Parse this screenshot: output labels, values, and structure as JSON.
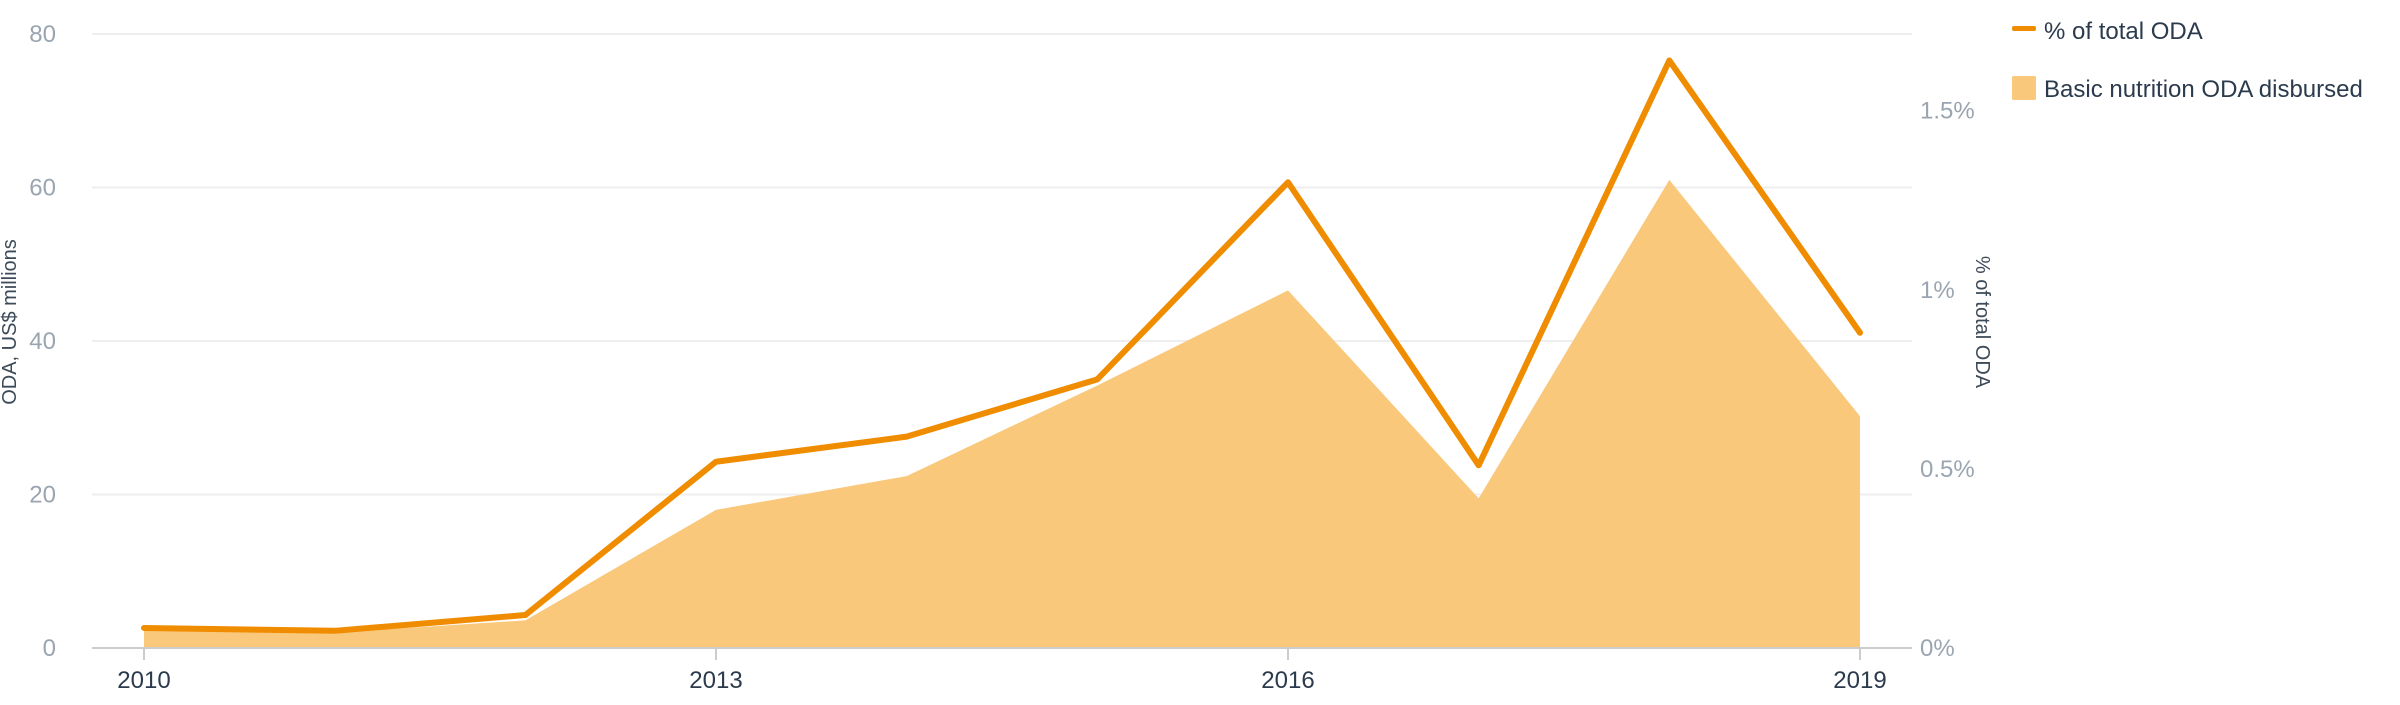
{
  "chart_data": {
    "type": "area",
    "x": [
      2010,
      2011,
      2012,
      2013,
      2014,
      2015,
      2016,
      2017,
      2018,
      2019
    ],
    "x_tick_labels": [
      "2010",
      "2013",
      "2016",
      "2019"
    ],
    "series": [
      {
        "name": "Basic nutrition ODA disbursed",
        "type": "area",
        "axis": "left",
        "color": "#fac87a",
        "values": [
          2.4,
          2.0,
          3.6,
          18.0,
          22.4,
          34.2,
          46.6,
          19.5,
          61.0,
          30.2
        ]
      },
      {
        "name": "% of total ODA",
        "type": "line",
        "axis": "right",
        "color": "#f08c00",
        "values": [
          0.056,
          0.048,
          0.092,
          0.52,
          0.59,
          0.75,
          1.3,
          0.51,
          1.64,
          0.88
        ]
      }
    ],
    "y_left": {
      "label": "ODA, US$ millions",
      "range": [
        0,
        80
      ],
      "ticks": [
        0,
        20,
        40,
        60,
        80
      ],
      "tick_labels": [
        "0",
        "20",
        "40",
        "60",
        "80"
      ]
    },
    "y_right": {
      "label": "% of total ODA",
      "range": [
        0,
        1.714
      ],
      "ticks": [
        0,
        0.5,
        1,
        1.5
      ],
      "tick_labels": [
        "0%",
        "0.5%",
        "1%",
        "1.5%"
      ]
    },
    "grid": true,
    "legend": {
      "placement": "top-right",
      "entries": [
        {
          "label": "% of total ODA",
          "marker": "line",
          "color": "#f08c00"
        },
        {
          "label": "Basic nutrition ODA disbursed",
          "marker": "square",
          "color": "#fac87a"
        }
      ]
    },
    "colors": {
      "grid": "#eeeeee",
      "axis": "#cccccc",
      "tick_text": "#9aa5b1",
      "x_text": "#2b3b4d"
    }
  }
}
